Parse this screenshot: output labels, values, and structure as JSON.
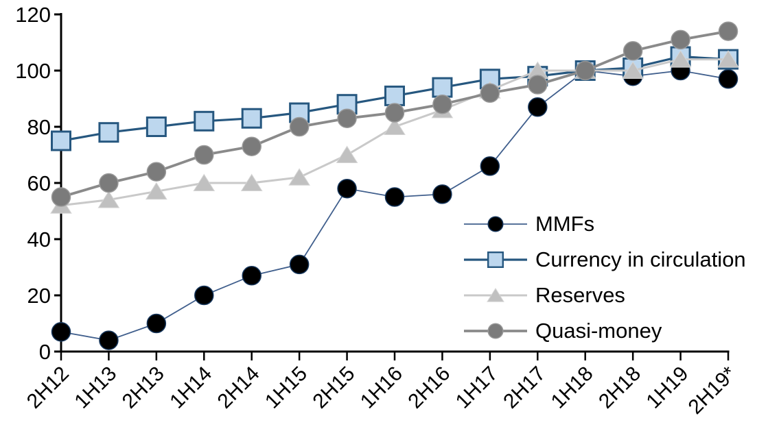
{
  "chart_data": {
    "type": "line",
    "title": "",
    "xlabel": "",
    "ylabel": "",
    "categories": [
      "2H12",
      "1H13",
      "2H13",
      "1H14",
      "2H14",
      "1H15",
      "2H15",
      "1H16",
      "2H16",
      "1H17",
      "2H17",
      "1H18",
      "2H18",
      "1H19",
      "2H19*"
    ],
    "series": [
      {
        "name": "MMFs",
        "marker": "circle",
        "values": [
          7,
          4,
          10,
          20,
          27,
          31,
          58,
          55,
          56,
          66,
          87,
          100,
          98,
          100,
          97
        ],
        "line_color": "#3F5E8C",
        "marker_fill": "#000000",
        "marker_stroke": "#16365C"
      },
      {
        "name": "Currency in circulation",
        "marker": "square",
        "values": [
          75,
          78,
          80,
          82,
          83,
          85,
          88,
          91,
          94,
          97,
          98,
          100,
          101,
          105,
          104
        ],
        "line_color": "#26577F",
        "marker_fill": "#BDD7EE",
        "marker_stroke": "#26577F"
      },
      {
        "name": "Reserves",
        "marker": "triangle",
        "values": [
          52,
          54,
          57,
          60,
          60,
          62,
          70,
          80,
          86,
          93,
          100,
          100,
          100,
          104,
          104
        ],
        "line_color": "#C9C9C9",
        "marker_fill": "#C0C0C0",
        "marker_stroke": "#D5D5D5"
      },
      {
        "name": "Quasi-money",
        "marker": "circle",
        "values": [
          55,
          60,
          64,
          70,
          73,
          80,
          83,
          85,
          88,
          92,
          95,
          100,
          107,
          111,
          114
        ],
        "line_color": "#8A8A8A",
        "marker_fill": "#7B7B7B",
        "marker_stroke": "#999999"
      }
    ],
    "ylim": [
      0,
      120
    ],
    "yticks": [
      0,
      20,
      40,
      60,
      80,
      100,
      120
    ],
    "grid": false,
    "legend_position": "inside-middle-right",
    "x_tick_rotation": -45,
    "axis_color": "#000000"
  }
}
